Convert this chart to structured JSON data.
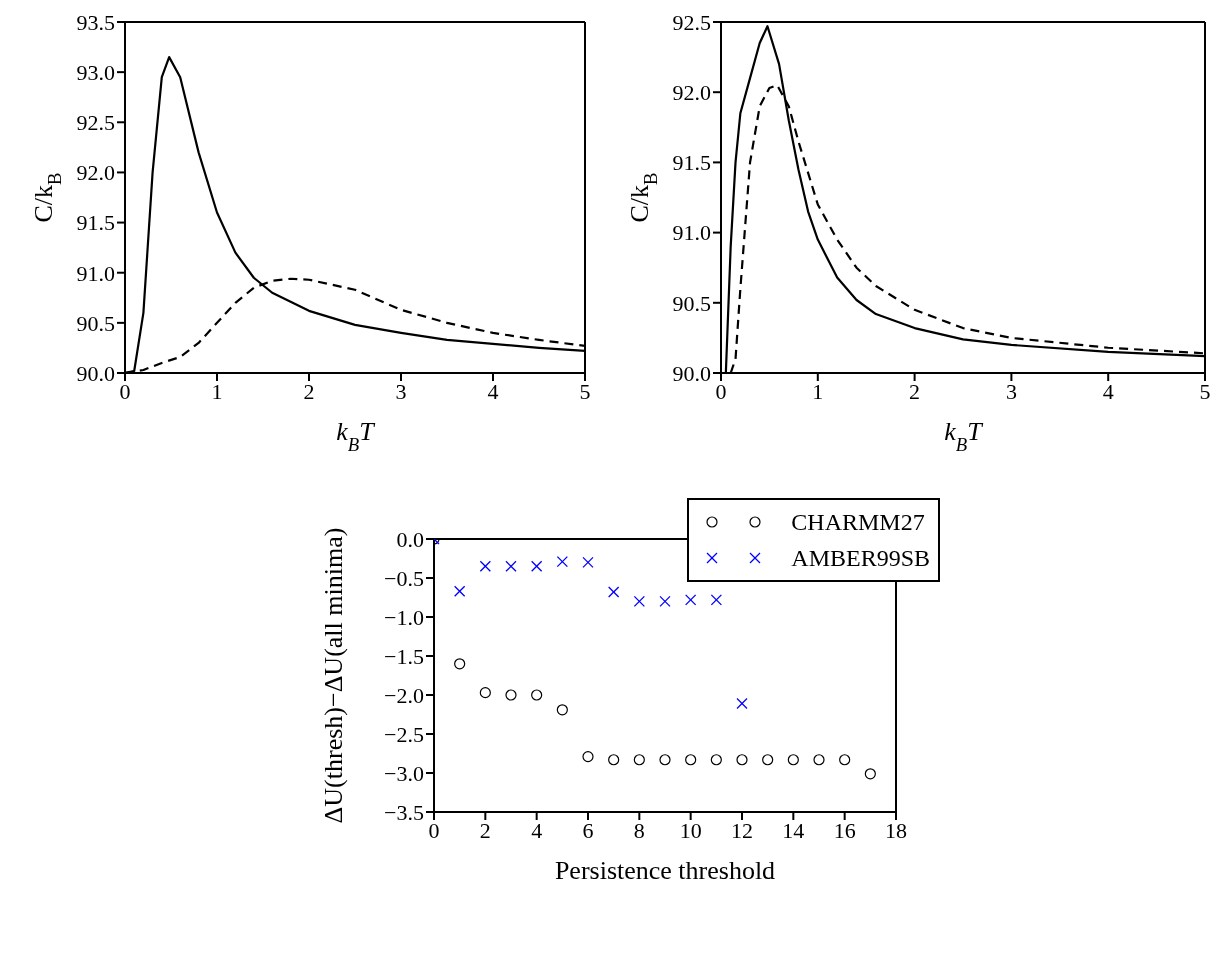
{
  "chart_data": [
    {
      "type": "line",
      "xlabel": "k$_{B}$T",
      "ylabel": "C/k$_{B}$",
      "xlim": [
        0,
        5
      ],
      "ylim": [
        90,
        93.5
      ],
      "xticks": [
        0,
        1,
        2,
        3,
        4,
        5
      ],
      "yticks": [
        {
          "value": 90,
          "label": "90.0"
        },
        {
          "value": 90.5,
          "label": "90.5"
        },
        {
          "value": 91,
          "label": "91.0"
        },
        {
          "value": 91.5,
          "label": "91.5"
        },
        {
          "value": 92,
          "label": "92.0"
        },
        {
          "value": 92.5,
          "label": "92.5"
        },
        {
          "value": 93,
          "label": "93.0"
        },
        {
          "value": 93.5,
          "label": "93.5"
        }
      ],
      "series": [
        {
          "color": "#000000",
          "line_style": "solid",
          "x": [
            0,
            0.1,
            0.2,
            0.3,
            0.4,
            0.48,
            0.6,
            0.8,
            1.0,
            1.2,
            1.4,
            1.6,
            2.0,
            2.5,
            3.0,
            3.5,
            4.0,
            4.5,
            5.0
          ],
          "values": [
            90.0,
            90.02,
            90.6,
            92.0,
            92.95,
            93.15,
            92.95,
            92.2,
            91.6,
            91.2,
            90.95,
            90.8,
            90.62,
            90.48,
            90.4,
            90.33,
            90.29,
            90.25,
            90.22
          ]
        },
        {
          "color": "#000000",
          "line_style": "dashed",
          "x": [
            0,
            0.2,
            0.4,
            0.6,
            0.8,
            1.0,
            1.2,
            1.4,
            1.6,
            1.8,
            2.0,
            2.5,
            3.0,
            3.5,
            4.0,
            4.5,
            5.0
          ],
          "values": [
            90.0,
            90.03,
            90.1,
            90.16,
            90.3,
            90.5,
            90.7,
            90.85,
            90.92,
            90.94,
            90.93,
            90.83,
            90.63,
            90.5,
            90.4,
            90.33,
            90.27
          ]
        }
      ]
    },
    {
      "type": "line",
      "xlabel": "k$_{B}$T",
      "ylabel": "C/k$_{B}$",
      "xlim": [
        0,
        5
      ],
      "ylim": [
        90,
        92.5
      ],
      "xticks": [
        0,
        1,
        2,
        3,
        4,
        5
      ],
      "yticks": [
        {
          "value": 90,
          "label": "90.0"
        },
        {
          "value": 90.5,
          "label": "90.5"
        },
        {
          "value": 91,
          "label": "91.0"
        },
        {
          "value": 91.5,
          "label": "91.5"
        },
        {
          "value": 92,
          "label": "92.0"
        },
        {
          "value": 92.5,
          "label": "92.5"
        }
      ],
      "series": [
        {
          "color": "#000000",
          "line_style": "solid",
          "x": [
            0,
            0.05,
            0.1,
            0.15,
            0.2,
            0.3,
            0.4,
            0.48,
            0.6,
            0.7,
            0.8,
            0.9,
            1.0,
            1.2,
            1.4,
            1.6,
            2.0,
            2.5,
            3.0,
            4.0,
            5.0
          ],
          "values": [
            90.0,
            90.0,
            90.9,
            91.5,
            91.85,
            92.1,
            92.35,
            92.47,
            92.2,
            91.8,
            91.45,
            91.15,
            90.95,
            90.68,
            90.52,
            90.42,
            90.32,
            90.24,
            90.2,
            90.15,
            90.12
          ]
        },
        {
          "color": "#000000",
          "line_style": "dashed",
          "x": [
            0.1,
            0.15,
            0.2,
            0.3,
            0.4,
            0.5,
            0.58,
            0.7,
            0.8,
            1.0,
            1.2,
            1.4,
            1.6,
            2.0,
            2.5,
            3.0,
            4.0,
            5.0
          ],
          "values": [
            90.0,
            90.1,
            90.6,
            91.5,
            91.9,
            92.03,
            92.05,
            91.9,
            91.65,
            91.2,
            90.95,
            90.75,
            90.62,
            90.45,
            90.32,
            90.25,
            90.18,
            90.14
          ]
        }
      ]
    },
    {
      "type": "scatter",
      "xlabel": "Persistence threshold",
      "ylabel": "ΔU(thresh)−ΔU(all minima)",
      "legend": "top right",
      "xlim": [
        0,
        18
      ],
      "ylim": [
        -3.5,
        0
      ],
      "xticks": [
        0,
        2,
        4,
        6,
        8,
        10,
        12,
        14,
        16,
        18
      ],
      "yticks": [
        {
          "value": -3.5,
          "label": "−3.5"
        },
        {
          "value": -3,
          "label": "−3.0"
        },
        {
          "value": -2.5,
          "label": "−2.5"
        },
        {
          "value": -2,
          "label": "−2.0"
        },
        {
          "value": -1.5,
          "label": "−1.5"
        },
        {
          "value": -1,
          "label": "−1.0"
        },
        {
          "value": -0.5,
          "label": "−0.5"
        },
        {
          "value": 0,
          "label": "0.0"
        }
      ],
      "series": [
        {
          "name": "CHARMM27",
          "color": "#000000",
          "marker": "circle",
          "x": [
            0,
            1,
            2,
            3,
            4,
            5,
            6,
            7,
            8,
            9,
            10,
            11,
            12,
            13,
            14,
            15,
            16,
            17
          ],
          "values": [
            0,
            -1.6,
            -1.97,
            -2.0,
            -2.0,
            -2.19,
            -2.79,
            -2.83,
            -2.83,
            -2.83,
            -2.83,
            -2.83,
            -2.83,
            -2.83,
            -2.83,
            -2.83,
            -2.83,
            -3.01
          ]
        },
        {
          "name": "AMBER99SB",
          "color": "#0000ff",
          "marker": "cross",
          "x": [
            0,
            1,
            2,
            3,
            4,
            5,
            6,
            7,
            8,
            9,
            10,
            11,
            12
          ],
          "values": [
            0,
            -0.67,
            -0.35,
            -0.35,
            -0.35,
            -0.29,
            -0.3,
            -0.68,
            -0.8,
            -0.8,
            -0.78,
            -0.78,
            -2.11
          ]
        }
      ]
    }
  ]
}
